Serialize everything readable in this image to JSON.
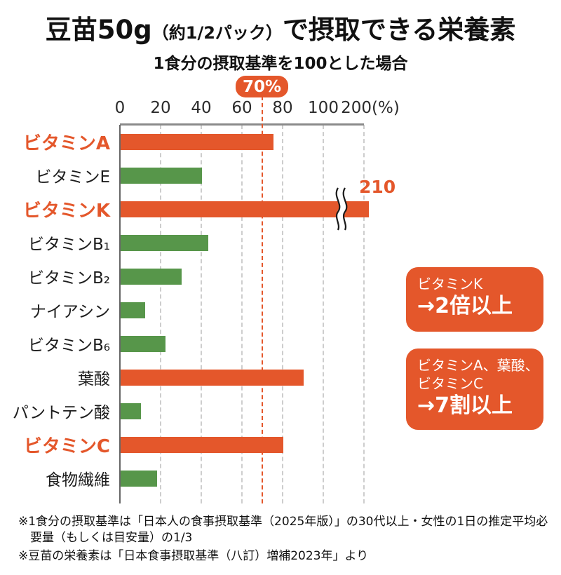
{
  "title": {
    "part1": "豆苗50g",
    "paren": "（約1/2パック）",
    "part2": "で摂取できる栄養素",
    "subtitle": "1食分の摂取基準を100とした場合"
  },
  "chart_data": {
    "type": "bar",
    "orientation": "horizontal",
    "unit": "%",
    "subtitle_note": "1食分の摂取基準を100とした場合",
    "axis_ticks": [
      {
        "value": 0,
        "label": "0"
      },
      {
        "value": 20,
        "label": "20"
      },
      {
        "value": 40,
        "label": "40"
      },
      {
        "value": 60,
        "label": "60"
      },
      {
        "value": 80,
        "label": "80"
      },
      {
        "value": 100,
        "label": "100"
      },
      {
        "value": 200,
        "label": "200(%)"
      }
    ],
    "axis_note": "scale compressed between 100 and 200",
    "threshold": {
      "value": 70,
      "label": "70%"
    },
    "bars": [
      {
        "label": "ビタミンA",
        "value": 75,
        "color": "orange",
        "label_style": "highlight"
      },
      {
        "label": "ビタミンE",
        "value": 40,
        "color": "green",
        "label_style": "normal"
      },
      {
        "label": "ビタミンK",
        "value": 210,
        "color": "orange",
        "label_style": "highlight",
        "broken": true,
        "annotation": "210"
      },
      {
        "label": "ビタミンB₁",
        "value": 43,
        "color": "green",
        "label_style": "normal"
      },
      {
        "label": "ビタミンB₂",
        "value": 30,
        "color": "green",
        "label_style": "normal"
      },
      {
        "label": "ナイアシン",
        "value": 12,
        "color": "green",
        "label_style": "normal"
      },
      {
        "label": "ビタミンB₆",
        "value": 22,
        "color": "green",
        "label_style": "normal"
      },
      {
        "label": "葉酸",
        "value": 90,
        "color": "orange",
        "label_style": "normal"
      },
      {
        "label": "パントテン酸",
        "value": 10,
        "color": "green",
        "label_style": "normal"
      },
      {
        "label": "ビタミンC",
        "value": 80,
        "color": "orange",
        "label_style": "highlight"
      },
      {
        "label": "食物繊維",
        "value": 18,
        "color": "green",
        "label_style": "normal"
      }
    ]
  },
  "callouts": [
    {
      "lines": [
        "ビタミンK"
      ],
      "emphasis": "→2倍以上"
    },
    {
      "lines": [
        "ビタミンA、葉酸、",
        "ビタミンC"
      ],
      "emphasis": "→7割以上"
    }
  ],
  "footnotes": [
    "※1食分の摂取基準は「日本人の食事摂取基準（2025年版）」の30代以上・女性の1日の推定平均必要量（もしくは目安量）の1/3",
    "※豆苗の栄養素は「日本食事摂取基準（八訂）増補2023年」より"
  ],
  "colors": {
    "orange": "#e4572b",
    "green": "#57964a",
    "grid": "#cdcdcd",
    "axis_line": "#8a8a8a",
    "axis_left": "#666666",
    "text": "#111111",
    "callout_text": "#ffffff"
  }
}
